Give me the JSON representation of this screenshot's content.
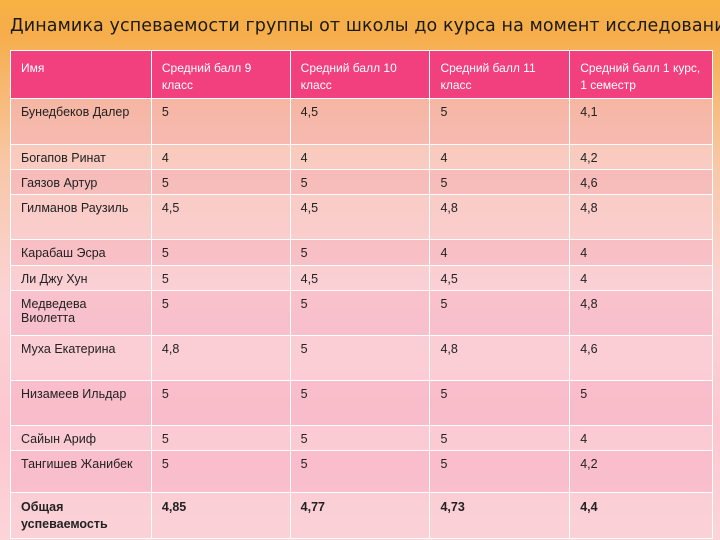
{
  "title": "Динамика успеваемости группы от школы до курса на момент исследования.",
  "table": {
    "headers": [
      "Имя",
      "Средний балл 9 класс",
      "Средний балл 10 класс",
      "Средний балл 11 класс",
      "Средний балл 1 курс, 1 семестр"
    ],
    "rows": [
      [
        "Бунедбеков Далер",
        "5",
        "4,5",
        "5",
        "4,1"
      ],
      [
        "Богапов Ринат",
        "4",
        "4",
        "4",
        "4,2"
      ],
      [
        "Гаязов Артур",
        "5",
        "5",
        "5",
        "4,6"
      ],
      [
        "Гилманов Раузиль",
        "4,5",
        "4,5",
        "4,8",
        "4,8"
      ],
      [
        "Карабаш Эсра",
        "5",
        "5",
        "4",
        "4"
      ],
      [
        "Ли Джу Хун",
        "5",
        "4,5",
        "4,5",
        "4"
      ],
      [
        "Медведева Виолетта",
        "5",
        "5",
        "5",
        "4,8"
      ],
      [
        "Муха Екатерина",
        "4,8",
        "5",
        "4,8",
        "4,6"
      ],
      [
        "Низамеев Ильдар",
        "5",
        "5",
        "5",
        "5"
      ],
      [
        "Сайын  Ариф",
        "5",
        "5",
        "5",
        "4"
      ],
      [
        "Тангишев Жанибек",
        "5",
        "5",
        "5",
        "4,2"
      ]
    ],
    "total": [
      "Общая успеваемость",
      "4,85",
      "4,77",
      "4,73",
      "4,4"
    ]
  }
}
